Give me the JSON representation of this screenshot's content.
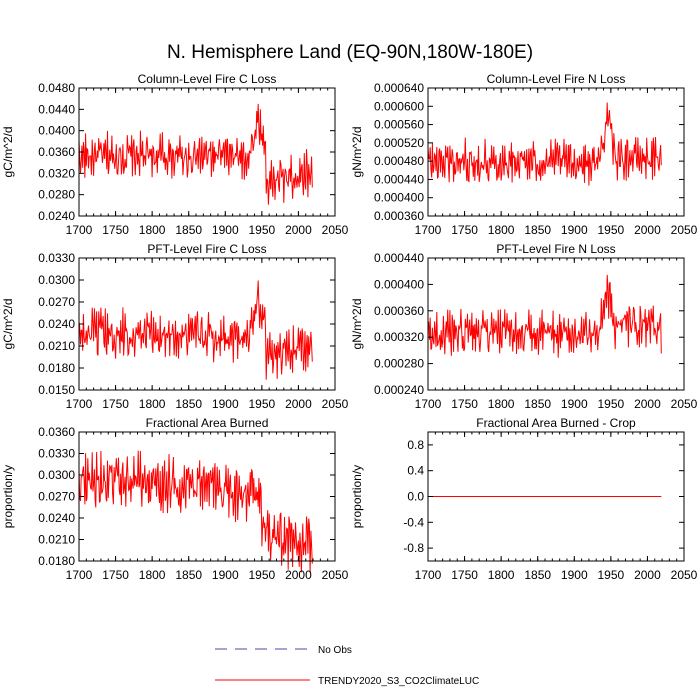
{
  "page_title": "N. Hemisphere Land (EQ-90N,180W-180E)",
  "legend": {
    "items": [
      {
        "label": "No Obs",
        "color": "#4a4aa8",
        "style": "dashed"
      },
      {
        "label": "TRENDY2020_S3_CO2ClimateLUC",
        "color": "#ff0000",
        "style": "solid"
      }
    ]
  },
  "chart_data": [
    {
      "type": "line",
      "title": "Column-Level Fire C Loss",
      "xlabel": "",
      "ylabel": "gC/m^2/d",
      "xlim": [
        1700,
        2050
      ],
      "ylim": [
        0.024,
        0.048
      ],
      "xticks": [
        "1700",
        "1750",
        "1800",
        "1850",
        "1900",
        "1950",
        "2000",
        "2050"
      ],
      "yticks": [
        "0.0240",
        "0.0280",
        "0.0320",
        "0.0360",
        "0.0400",
        "0.0440",
        "0.0480"
      ],
      "series": [
        {
          "name": "TRENDY2020_S3_CO2ClimateLUC",
          "color": "#ff0000",
          "x_start": 1700,
          "x_end": 2019,
          "base": 0.0352,
          "amp": 0.0038,
          "peak": 0.0425,
          "peak_year": 1945,
          "post": 0.0305
        }
      ]
    },
    {
      "type": "line",
      "title": "Column-Level Fire N Loss",
      "xlabel": "",
      "ylabel": "gN/m^2/d",
      "xlim": [
        1700,
        2050
      ],
      "ylim": [
        0.00036,
        0.00064
      ],
      "xticks": [
        "1700",
        "1750",
        "1800",
        "1850",
        "1900",
        "1950",
        "2000",
        "2050"
      ],
      "yticks": [
        "0.000360",
        "0.000400",
        "0.000440",
        "0.000480",
        "0.000520",
        "0.000560",
        "0.000600",
        "0.000640"
      ],
      "series": [
        {
          "name": "TRENDY2020_S3_CO2ClimateLUC",
          "color": "#ff0000",
          "x_start": 1700,
          "x_end": 2019,
          "base": 0.000478,
          "amp": 4.2e-05,
          "peak": 0.00058,
          "peak_year": 1945,
          "post": 0.00049
        }
      ]
    },
    {
      "type": "line",
      "title": "PFT-Level Fire C Loss",
      "xlabel": "",
      "ylabel": "gC/m^2/d",
      "xlim": [
        1700,
        2050
      ],
      "ylim": [
        0.015,
        0.033
      ],
      "xticks": [
        "1700",
        "1750",
        "1800",
        "1850",
        "1900",
        "1950",
        "2000",
        "2050"
      ],
      "yticks": [
        "0.0150",
        "0.0180",
        "0.0210",
        "0.0240",
        "0.0270",
        "0.0300",
        "0.0330"
      ],
      "series": [
        {
          "name": "TRENDY2020_S3_CO2ClimateLUC",
          "color": "#ff0000",
          "x_start": 1700,
          "x_end": 2019,
          "base": 0.0225,
          "amp": 0.003,
          "peak": 0.028,
          "peak_year": 1945,
          "post": 0.02
        }
      ]
    },
    {
      "type": "line",
      "title": "PFT-Level Fire N Loss",
      "xlabel": "",
      "ylabel": "gN/m^2/d",
      "xlim": [
        1700,
        2050
      ],
      "ylim": [
        0.00024,
        0.00044
      ],
      "xticks": [
        "1700",
        "1750",
        "1800",
        "1850",
        "1900",
        "1950",
        "2000",
        "2050"
      ],
      "yticks": [
        "0.000240",
        "0.000280",
        "0.000320",
        "0.000360",
        "0.000400",
        "0.000440"
      ],
      "series": [
        {
          "name": "TRENDY2020_S3_CO2ClimateLUC",
          "color": "#ff0000",
          "x_start": 1700,
          "x_end": 2019,
          "base": 0.000325,
          "amp": 3e-05,
          "peak": 0.000395,
          "peak_year": 1945,
          "post": 0.00034
        }
      ]
    },
    {
      "type": "line",
      "title": "Fractional Area Burned",
      "xlabel": "",
      "ylabel": "proportion/y",
      "xlim": [
        1700,
        2050
      ],
      "ylim": [
        0.018,
        0.036
      ],
      "xticks": [
        "1700",
        "1750",
        "1800",
        "1850",
        "1900",
        "1950",
        "2000",
        "2050"
      ],
      "yticks": [
        "0.0180",
        "0.0210",
        "0.0240",
        "0.0270",
        "0.0300",
        "0.0330",
        "0.0360"
      ],
      "series": [
        {
          "name": "TRENDY2020_S3_CO2ClimateLUC",
          "color": "#ff0000",
          "x_start": 1700,
          "x_end": 2019,
          "base": 0.0295,
          "amp": 0.0035,
          "trend_end": 0.0275,
          "peak_year": 1950,
          "post": 0.022
        }
      ]
    },
    {
      "type": "line",
      "title": "Fractional Area Burned - Crop",
      "xlabel": "",
      "ylabel": "proportion/y",
      "xlim": [
        1700,
        2050
      ],
      "ylim": [
        -1.0,
        1.0
      ],
      "xticks": [
        "1700",
        "1750",
        "1800",
        "1850",
        "1900",
        "1950",
        "2000",
        "2050"
      ],
      "yticks": [
        "-0.8",
        "-0.4",
        "0.0",
        "0.4",
        "0.8"
      ],
      "ytick_values": [
        -0.8,
        -0.4,
        0.0,
        0.4,
        0.8
      ],
      "series": [
        {
          "name": "TRENDY2020_S3_CO2ClimateLUC",
          "color": "#ff0000",
          "x_start": 1700,
          "x_end": 2019,
          "constant": 0.0
        }
      ]
    }
  ]
}
